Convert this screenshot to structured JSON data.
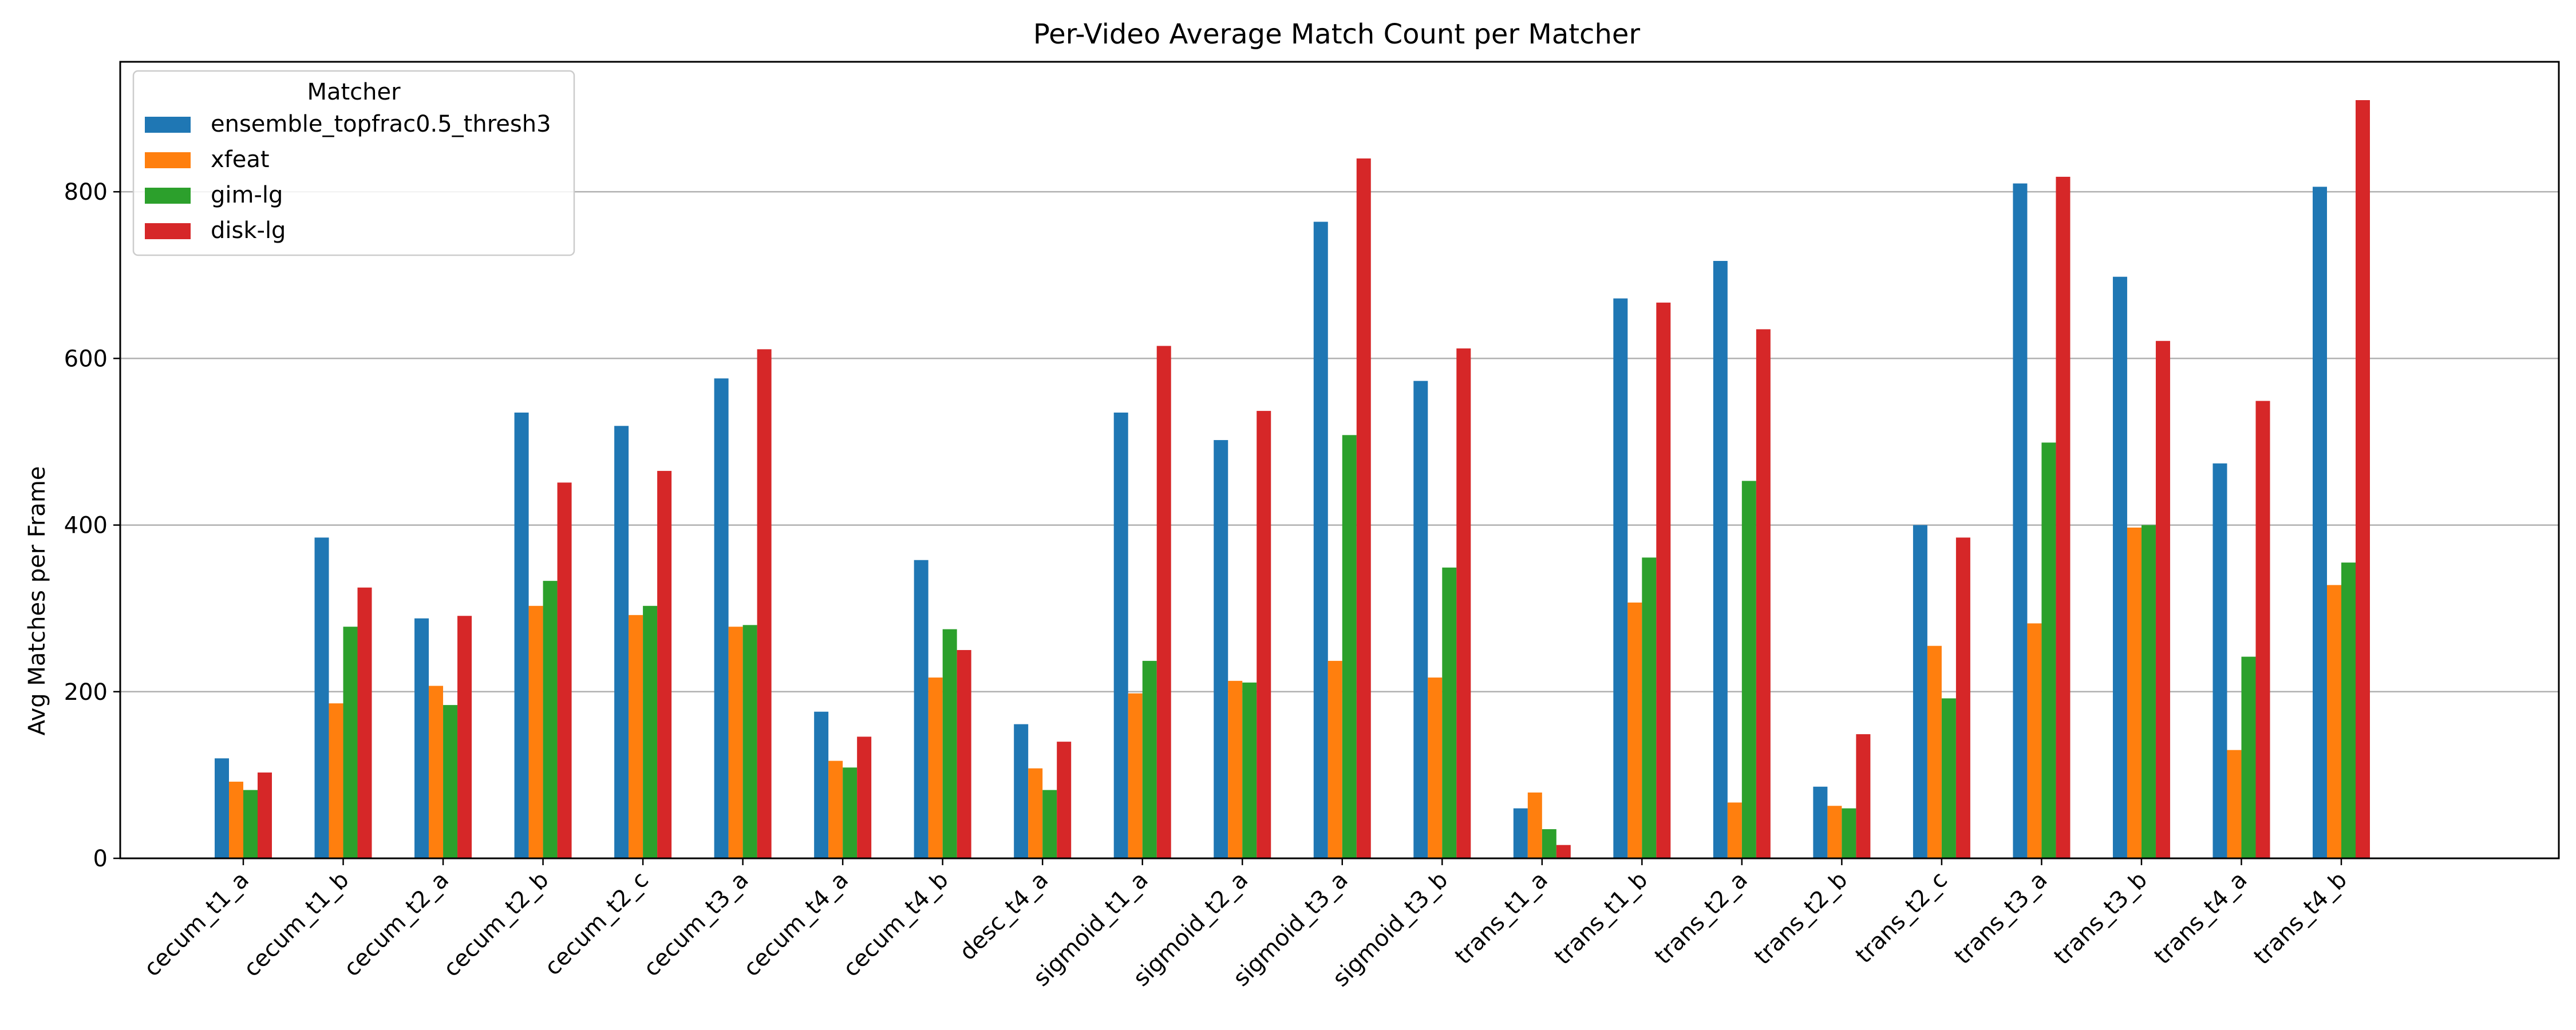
{
  "chart_data": {
    "type": "bar",
    "title": "Per-Video Average Match Count per Matcher",
    "xlabel": "",
    "ylabel": "Avg Matches per Frame",
    "ylim": [
      0,
      956
    ],
    "yticks": [
      0,
      200,
      400,
      600,
      800
    ],
    "grid": "y",
    "legend": {
      "title": "Matcher",
      "placement": "top-left"
    },
    "categories": [
      "cecum_t1_a",
      "cecum_t1_b",
      "cecum_t2_a",
      "cecum_t2_b",
      "cecum_t2_c",
      "cecum_t3_a",
      "cecum_t4_a",
      "cecum_t4_b",
      "desc_t4_a",
      "sigmoid_t1_a",
      "sigmoid_t2_a",
      "sigmoid_t3_a",
      "sigmoid_t3_b",
      "trans_t1_a",
      "trans_t1_b",
      "trans_t2_a",
      "trans_t2_b",
      "trans_t2_c",
      "trans_t3_a",
      "trans_t3_b",
      "trans_t4_a",
      "trans_t4_b"
    ],
    "series": [
      {
        "name": "ensemble_topfrac0.5_thresh3",
        "color": "#1f77b4",
        "values": [
          120,
          385,
          288,
          535,
          519,
          576,
          176,
          358,
          161,
          535,
          502,
          764,
          573,
          60,
          672,
          717,
          86,
          400,
          810,
          698,
          474,
          806
        ]
      },
      {
        "name": "xfeat",
        "color": "#ff7f0e",
        "values": [
          92,
          186,
          207,
          303,
          292,
          278,
          117,
          217,
          108,
          198,
          213,
          237,
          217,
          79,
          307,
          67,
          63,
          255,
          282,
          397,
          130,
          328
        ]
      },
      {
        "name": "gim-lg",
        "color": "#2ca02c",
        "values": [
          82,
          278,
          184,
          333,
          303,
          280,
          109,
          275,
          82,
          237,
          211,
          508,
          349,
          35,
          361,
          453,
          60,
          192,
          499,
          400,
          242,
          355
        ]
      },
      {
        "name": "disk-lg",
        "color": "#d62728",
        "values": [
          103,
          325,
          291,
          451,
          465,
          611,
          146,
          250,
          140,
          615,
          537,
          840,
          612,
          16,
          667,
          635,
          149,
          385,
          818,
          621,
          549,
          910
        ]
      }
    ]
  }
}
